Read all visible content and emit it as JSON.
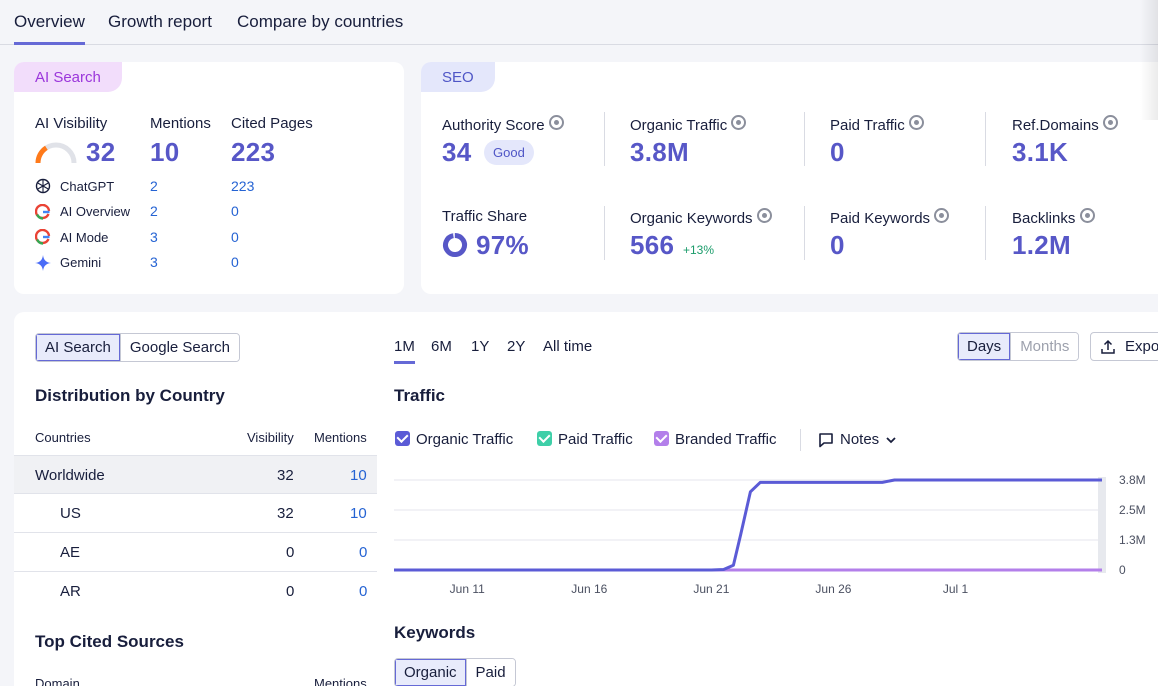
{
  "tabs": [
    "Overview",
    "Growth report",
    "Compare by countries"
  ],
  "ai_card": {
    "pill": "AI Search",
    "visibility_label": "AI Visibility",
    "visibility_value": "32",
    "visibility_fill": 0.32,
    "mentions_label": "Mentions",
    "mentions_value": "10",
    "cited_label": "Cited Pages",
    "cited_value": "223",
    "sources": [
      {
        "name": "ChatGPT",
        "icon": "chatgpt-icon",
        "mentions": "2",
        "cited": "223"
      },
      {
        "name": "AI Overview",
        "icon": "google-icon",
        "mentions": "2",
        "cited": "0"
      },
      {
        "name": "AI Mode",
        "icon": "google-icon",
        "mentions": "3",
        "cited": "0"
      },
      {
        "name": "Gemini",
        "icon": "gemini-icon",
        "mentions": "3",
        "cited": "0"
      }
    ]
  },
  "seo_card": {
    "pill": "SEO",
    "authority_label": "Authority Score",
    "authority_value": "34",
    "authority_badge": "Good",
    "organic_traffic_label": "Organic Traffic",
    "organic_traffic_value": "3.8M",
    "paid_traffic_label": "Paid Traffic",
    "paid_traffic_value": "0",
    "ref_domains_label": "Ref.Domains",
    "ref_domains_value": "3.1K",
    "traffic_share_label": "Traffic Share",
    "traffic_share_value": "97%",
    "traffic_share_fill": 0.97,
    "organic_keywords_label": "Organic Keywords",
    "organic_keywords_value": "566",
    "organic_keywords_delta": "+13%",
    "paid_keywords_label": "Paid Keywords",
    "paid_keywords_value": "0",
    "backlinks_label": "Backlinks",
    "backlinks_value": "1.2M"
  },
  "left_panel": {
    "toggle": [
      "AI Search",
      "Google Search"
    ],
    "distribution_title": "Distribution by Country",
    "col_countries": "Countries",
    "col_visibility": "Visibility",
    "col_mentions": "Mentions",
    "rows": [
      {
        "country": "Worldwide",
        "visibility": "32",
        "mentions": "10"
      },
      {
        "country": "US",
        "visibility": "32",
        "mentions": "10"
      },
      {
        "country": "AE",
        "visibility": "0",
        "mentions": "0"
      },
      {
        "country": "AR",
        "visibility": "0",
        "mentions": "0"
      }
    ],
    "top_cited_title": "Top Cited Sources",
    "col_domain": "Domain",
    "col_mentions2": "Mentions"
  },
  "traffic_panel": {
    "ranges": [
      "1M",
      "6M",
      "1Y",
      "2Y",
      "All time"
    ],
    "granularity": [
      "Days",
      "Months"
    ],
    "export_label": "Expo",
    "title": "Traffic",
    "legend": [
      {
        "label": "Organic Traffic",
        "color": "#5b5bd6"
      },
      {
        "label": "Paid Traffic",
        "color": "#3ecfa8"
      },
      {
        "label": "Branded Traffic",
        "color": "#b37fea"
      }
    ],
    "notes_label": "Notes",
    "keywords_title": "Keywords",
    "keywords_toggle": [
      "Organic",
      "Paid"
    ]
  },
  "chart_data": {
    "type": "line",
    "x_tick_labels": [
      "Jun 11",
      "Jun 16",
      "Jun 21",
      "Jun 26",
      "Jul 1"
    ],
    "y_tick_labels": [
      "3.8M",
      "2.5M",
      "1.3M",
      "0"
    ],
    "ylim": [
      0,
      3.8
    ],
    "grid": true,
    "series": [
      {
        "name": "Organic Traffic",
        "color": "#5b5bd6",
        "points": [
          [
            0,
            0
          ],
          [
            13,
            0
          ],
          [
            13.5,
            0.02
          ],
          [
            13.9,
            0.2
          ],
          [
            14.2,
            1.5
          ],
          [
            14.6,
            3.3
          ],
          [
            15,
            3.7
          ],
          [
            20,
            3.7
          ],
          [
            20.5,
            3.8
          ],
          [
            29,
            3.8
          ]
        ]
      },
      {
        "name": "Branded Traffic",
        "color": "#b37fea",
        "points": [
          [
            0,
            0
          ],
          [
            29,
            0
          ]
        ]
      }
    ]
  }
}
